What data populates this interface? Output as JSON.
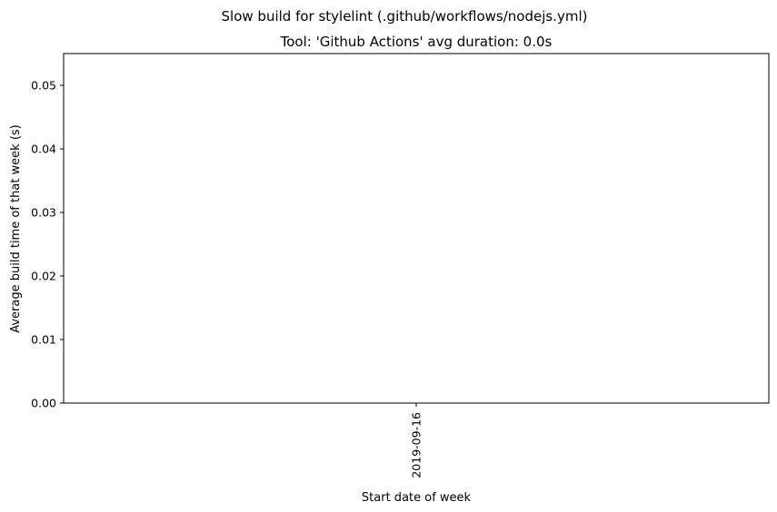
{
  "chart_data": {
    "type": "line",
    "suptitle": "Slow build for stylelint (.github/workflows/nodejs.yml)",
    "title": "Tool: 'Github Actions' avg duration: 0.0s",
    "xlabel": "Start date of week",
    "ylabel": "Average build time of that week (s)",
    "x": [
      "2019-09-16"
    ],
    "series": [
      {
        "values": [
          0.0
        ]
      }
    ],
    "ylim": [
      0,
      0.055
    ],
    "yticks": [
      "0.00",
      "0.01",
      "0.02",
      "0.03",
      "0.04",
      "0.05"
    ],
    "ytick_values": [
      0,
      0.01,
      0.02,
      0.03,
      0.04,
      0.05
    ],
    "grid": false,
    "legend": "none",
    "colors": {
      "line": "#1f77b4",
      "axes": "#000000",
      "background": "#ffffff"
    }
  }
}
